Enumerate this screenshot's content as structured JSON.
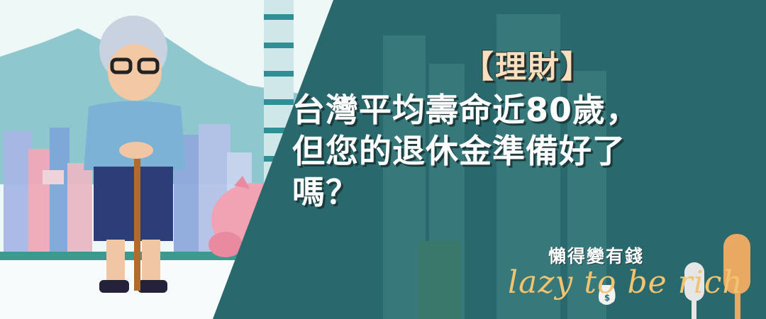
{
  "tag": "【理財】",
  "headline": {
    "line1": "台灣平均壽命近80歲，",
    "line2": "但您的退休金準備好了",
    "line3": "嗎？"
  },
  "brand": {
    "zh": "懶得變有錢",
    "en": "lazy to be rich",
    "icon": "money-bag-icon"
  },
  "colors": {
    "panel": "#2d6d71",
    "tag": "#f6e0bd",
    "brand_accent": "#f2c46f"
  }
}
